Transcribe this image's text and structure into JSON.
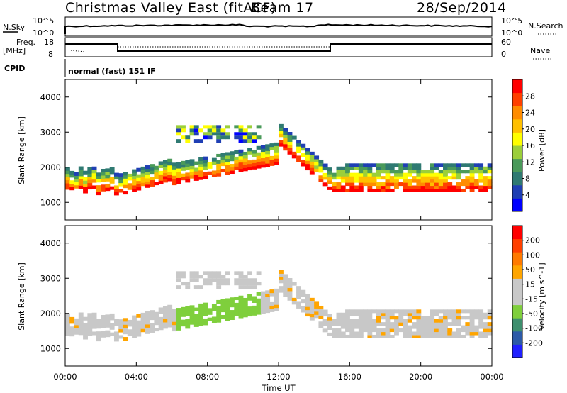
{
  "header": {
    "title": "Christmas Valley East (fitACF)",
    "beam": "Beam 17",
    "date": "28/Sep/2014"
  },
  "labels": {
    "nsky": "N.Sky",
    "nsky_top": "10^5",
    "nsky_bottom": "10^0",
    "nsearch": "N.Search",
    "nsearch_top": "10^5",
    "nsearch_bottom": "10^0",
    "freq_line1": "Freq.",
    "freq_line2": "[MHz]",
    "freq_top": "18",
    "freq_bottom": "8",
    "nave": "Nave",
    "nave_top": "60",
    "nave_bottom": "0",
    "cpid": "CPID",
    "cpid_value": "normal (fast) 151 IF"
  },
  "colors": {
    "power_scale": [
      "#0000ff",
      "#1f3fb4",
      "#2f7a72",
      "#4a9a5a",
      "#9bcf3a",
      "#ffff00",
      "#ffc000",
      "#ff8c00",
      "#ff4000",
      "#ff0000"
    ],
    "velocity_scale": [
      "#2020ff",
      "#2c5aa8",
      "#3d8f6e",
      "#7fcf3c",
      "#c8c8c8",
      "#c8c8c8",
      "#ffa500",
      "#ff7a00",
      "#ff4000",
      "#ff0000"
    ]
  },
  "chart_data": [
    {
      "type": "heatmap",
      "name": "power",
      "ylabel": "Slant Range [km]",
      "xlim": [
        "00:00",
        "24:00"
      ],
      "ylim": [
        500,
        4500
      ],
      "yticks": [
        1000,
        2000,
        3000,
        4000
      ],
      "colorbar": {
        "label": "Power [dB]",
        "ticks": [
          "4",
          "8",
          "12",
          "16",
          "20",
          "24",
          "28"
        ]
      }
    },
    {
      "type": "heatmap",
      "name": "velocity",
      "ylabel": "Slant Range [km]",
      "xlabel": "Time UT",
      "xlim": [
        "00:00",
        "24:00"
      ],
      "ylim": [
        500,
        4500
      ],
      "yticks": [
        1000,
        2000,
        3000,
        4000
      ],
      "xticks": [
        "00:00",
        "04:00",
        "08:00",
        "12:00",
        "16:00",
        "20:00",
        "00:00"
      ],
      "colorbar": {
        "label": "Velocity [m s^-1]",
        "ticks": [
          "200",
          "100",
          "50",
          "15",
          "-15",
          "-50",
          "-100",
          "-200"
        ]
      }
    }
  ]
}
